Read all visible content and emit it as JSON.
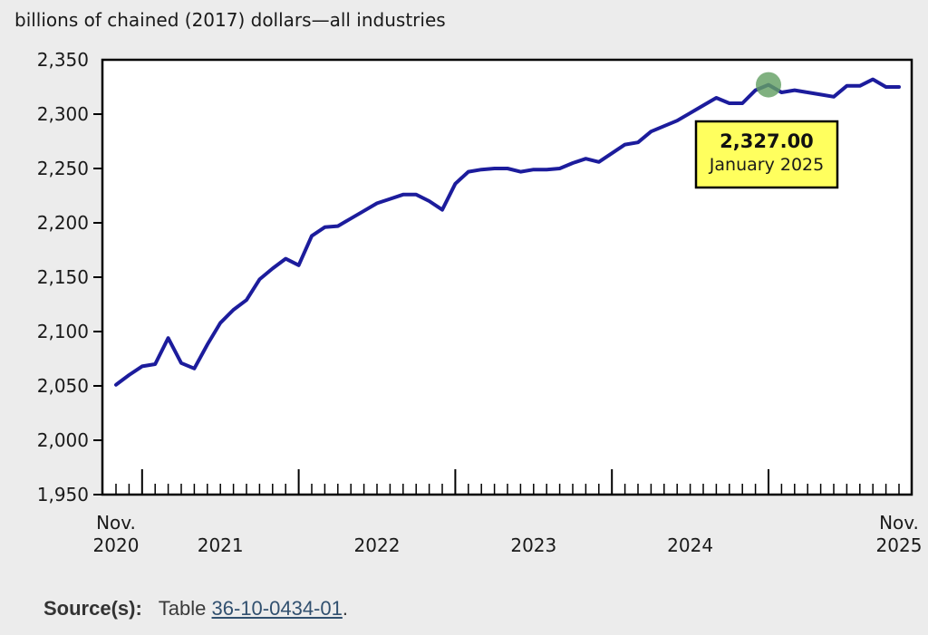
{
  "title": "billions of chained (2017) dollars—all industries",
  "tooltip": {
    "value": "2,327.00",
    "label": "January 2025"
  },
  "source": {
    "label": "Source(s):",
    "prefix": "Table ",
    "link_text": "36-10-0434-01",
    "suffix": "."
  },
  "colors": {
    "background": "#ececec",
    "plot_background": "#ffffff",
    "frame": "#000000",
    "line": "#1c1c9c",
    "marker": "rgba(100,160,100,0.82)",
    "tooltip_bg": "#ffff5e",
    "tooltip_border": "#000000",
    "text": "#1a1a1a",
    "link": "#31506f"
  },
  "chart_data": {
    "type": "line",
    "title": "billions of chained (2017) dollars—all industries",
    "ylabel": "billions of chained (2017) dollars",
    "ylim": [
      1950,
      2350
    ],
    "grid": false,
    "legend": "none",
    "y_ticks": [
      2350,
      2300,
      2250,
      2200,
      2150,
      2100,
      2050,
      2000,
      1950
    ],
    "x_axis": {
      "first": {
        "line1": "Nov.",
        "line2": "2020",
        "index": 0
      },
      "last": {
        "line1": "Nov.",
        "line2": "2025",
        "index": 60
      },
      "years": [
        {
          "label": "2021",
          "center_index": 8
        },
        {
          "label": "2022",
          "center_index": 20
        },
        {
          "label": "2023",
          "center_index": 32
        },
        {
          "label": "2024",
          "center_index": 44
        }
      ]
    },
    "months": [
      "2020-11",
      "2020-12",
      "2021-01",
      "2021-02",
      "2021-03",
      "2021-04",
      "2021-05",
      "2021-06",
      "2021-07",
      "2021-08",
      "2021-09",
      "2021-10",
      "2021-11",
      "2021-12",
      "2022-01",
      "2022-02",
      "2022-03",
      "2022-04",
      "2022-05",
      "2022-06",
      "2022-07",
      "2022-08",
      "2022-09",
      "2022-10",
      "2022-11",
      "2022-12",
      "2023-01",
      "2023-02",
      "2023-03",
      "2023-04",
      "2023-05",
      "2023-06",
      "2023-07",
      "2023-08",
      "2023-09",
      "2023-10",
      "2023-11",
      "2023-12",
      "2024-01",
      "2024-02",
      "2024-03",
      "2024-04",
      "2024-05",
      "2024-06",
      "2024-07",
      "2024-08",
      "2024-09",
      "2024-10",
      "2024-11",
      "2024-12",
      "2025-01",
      "2025-02",
      "2025-03",
      "2025-04",
      "2025-05",
      "2025-06",
      "2025-07",
      "2025-08",
      "2025-09",
      "2025-10",
      "2025-11"
    ],
    "values": [
      2051,
      2060,
      2068,
      2070,
      2094,
      2071,
      2066,
      2088,
      2108,
      2120,
      2129,
      2148,
      2158,
      2167,
      2161,
      2188,
      2196,
      2197,
      2204,
      2211,
      2218,
      2222,
      2226,
      2226,
      2220,
      2212,
      2236,
      2247,
      2249,
      2250,
      2250,
      2247,
      2249,
      2249,
      2250,
      2255,
      2259,
      2256,
      2264,
      2272,
      2274,
      2284,
      2289,
      2294,
      2301,
      2308,
      2315,
      2310,
      2310,
      2322,
      2327,
      2320,
      2322,
      2320,
      2318,
      2316,
      2326,
      2326,
      2332,
      2325,
      2325
    ],
    "highlight": {
      "index": 50,
      "month": "January 2025",
      "value": 2327.0
    }
  }
}
